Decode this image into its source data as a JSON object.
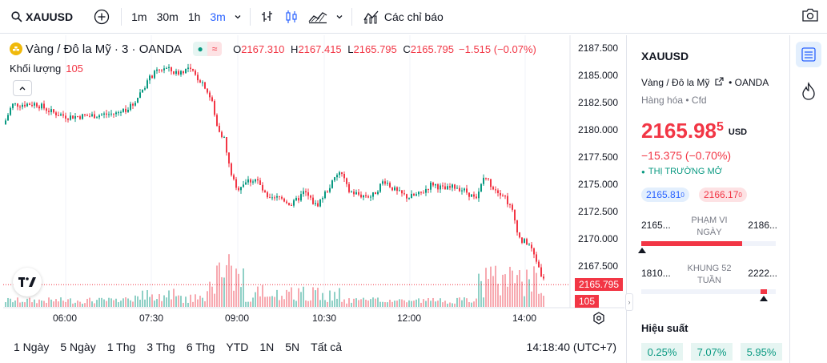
{
  "toolbar": {
    "symbol": "XAUUSD",
    "intervals": [
      "1m",
      "30m",
      "1h",
      "3m"
    ],
    "active_interval": "3m",
    "indicators_label": "Các chỉ báo"
  },
  "legend": {
    "title": "Vàng / Đô la Mỹ · 3 · OANDA",
    "o_label": "O",
    "o_val": "2167.310",
    "h_label": "H",
    "h_val": "2167.415",
    "l_label": "L",
    "l_val": "2165.795",
    "c_label": "C",
    "c_val": "2165.795",
    "change": "−1.515 (−0.07%)",
    "volume_label": "Khối lượng",
    "volume_val": "105"
  },
  "chart_data": {
    "type": "candlestick",
    "y_ticks": [
      "2187.500",
      "2185.000",
      "2182.500",
      "2180.000",
      "2177.500",
      "2175.000",
      "2172.500",
      "2170.000",
      "2167.500"
    ],
    "ylim": [
      2165.0,
      2188.0
    ],
    "x_ticks": [
      "06:00",
      "07:30",
      "09:00",
      "10:30",
      "12:00",
      "14:00"
    ],
    "last_price": "2165.795",
    "last_volume": "105",
    "colors": {
      "up": "#089981",
      "down": "#f23645"
    }
  },
  "range_buttons": [
    "1 Ngày",
    "5 Ngày",
    "1 Thg",
    "3 Thg",
    "6 Thg",
    "YTD",
    "1N",
    "5N",
    "Tất cả"
  ],
  "clock": "14:18:40 (UTC+7)",
  "panel": {
    "symbol": "XAUUSD",
    "desc": "Vàng / Đô la Mỹ",
    "exchange": "OANDA",
    "category": "Hàng hóa • Cfd",
    "price_main": "2165.98",
    "price_frac": "5",
    "currency": "USD",
    "change": "−15.375 (−0.70%)",
    "status": "THỊ TRƯỜNG MỞ",
    "bid": "2165.81",
    "bid_sup": "0",
    "ask": "2166.17",
    "ask_sup": "0",
    "day_low": "2165...",
    "day_high": "2186...",
    "day_label": "PHẠM VI NGÀY",
    "day_fill": 0.75,
    "wk_low": "1810...",
    "wk_high": "2222...",
    "wk_label": "KHUNG 52 TUẦN",
    "wk_pos": 0.9,
    "perf_title": "Hiệu suất",
    "perf": [
      "0.25%",
      "7.07%",
      "5.95%"
    ]
  }
}
